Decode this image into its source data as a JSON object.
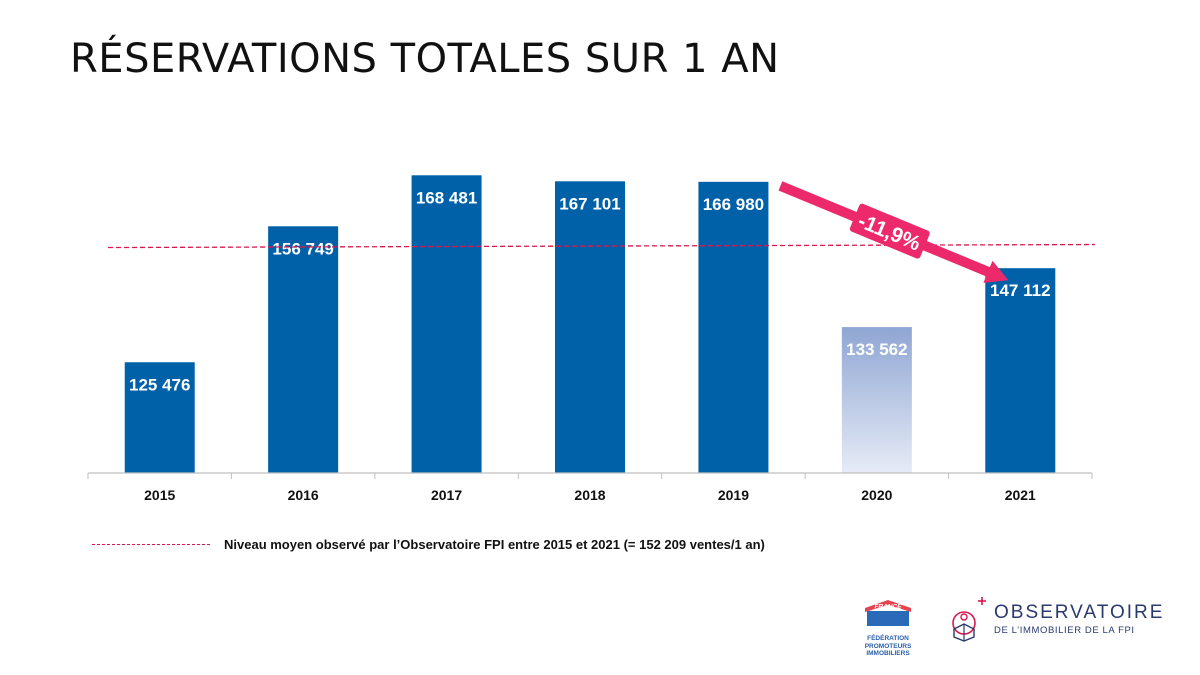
{
  "title": "RÉSERVATIONS TOTALES SUR 1 AN",
  "chart_data": {
    "type": "bar",
    "categories": [
      "2015",
      "2016",
      "2017",
      "2018",
      "2019",
      "2020",
      "2021"
    ],
    "values": [
      125476,
      156749,
      168481,
      167101,
      166980,
      133562,
      147112
    ],
    "value_labels": [
      "125 476",
      "156 749",
      "168 481",
      "167 101",
      "166 980",
      "133 562",
      "147 112"
    ],
    "ylim": [
      100000,
      172000
    ],
    "average": {
      "value": 152209,
      "label": "Niveau moyen observé par l’Observatoire FPI entre 2015 et 2021 (= 152 209 ventes/1 an)"
    },
    "annotation": {
      "text": "-11,9%",
      "from": "2019",
      "to": "2021"
    },
    "highlighted_faded_bar": "2020",
    "colors": {
      "bar": "#0060a8",
      "bar_faded_top": "#8fa6d3",
      "bar_faded_bottom": "#e6ebf6",
      "average_line": "#d9184f",
      "arrow": "#ec2a6b"
    },
    "grid": false
  },
  "legend": {
    "text": "Niveau moyen observé par l’Observatoire FPI entre 2015 et 2021 (= 152 209 ventes/1 an)"
  },
  "logos": {
    "fpi_badge": "FRANCE",
    "fpi_lines": [
      "FÉDÉRATION",
      "PROMOTEURS",
      "IMMOBILIERS"
    ],
    "obs_title": "OBSERVATOIRE",
    "obs_subtitle": "DE L’IMMOBILIER DE LA FPI"
  }
}
